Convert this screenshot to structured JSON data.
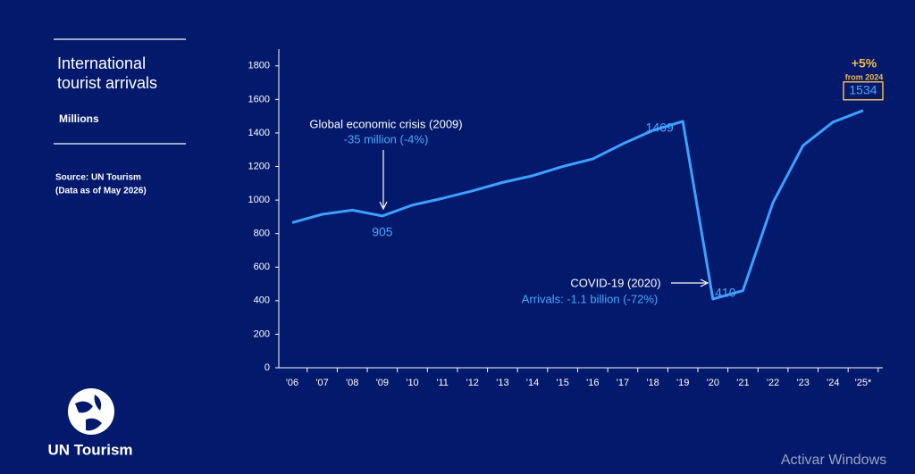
{
  "sidebar": {
    "title": "International tourist arrivals",
    "subtitle": "Millions",
    "source": "Source: UN Tourism",
    "source_note": "(Data as of May 2026)",
    "logo": "UN Tourism"
  },
  "watermark": "Activar Windows",
  "chart_data": {
    "type": "line",
    "categories": [
      "'06",
      "'07",
      "'08",
      "'09",
      "'10",
      "'11",
      "'12",
      "'13",
      "'14",
      "'15",
      "'16",
      "'17",
      "'18",
      "'19",
      "'20",
      "'21",
      "'22",
      "'23",
      "'24",
      "'25*"
    ],
    "values": [
      865,
      915,
      940,
      905,
      970,
      1010,
      1055,
      1105,
      1145,
      1200,
      1245,
      1335,
      1415,
      1469,
      410,
      460,
      985,
      1325,
      1465,
      1534
    ],
    "color": "#3ea0ff",
    "ylim": [
      0,
      1900
    ],
    "yticks": [
      0,
      200,
      400,
      600,
      800,
      1000,
      1200,
      1400,
      1600,
      1800
    ],
    "annotations": {
      "crisis_title": "Global economic crisis (2009)",
      "crisis_detail": "-35 million (-4%)",
      "covid_title": "COVID-19 (2020)",
      "covid_detail": "Arrivals: -1.1 billion (-72%)",
      "growth": "+5%",
      "growth_note": "from 2024"
    }
  }
}
